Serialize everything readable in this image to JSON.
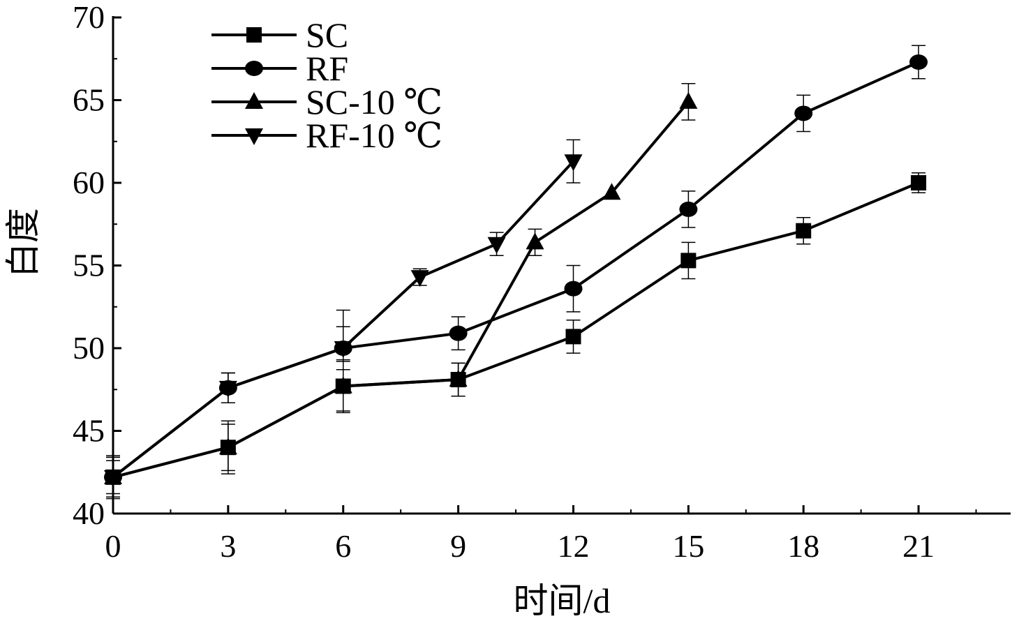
{
  "chart_data": {
    "type": "line",
    "title": "",
    "xlabel": "时间/d",
    "ylabel": "白度",
    "xlim": [
      0,
      23.4
    ],
    "ylim": [
      40,
      70
    ],
    "xticks": [
      0,
      3,
      6,
      9,
      12,
      15,
      18,
      21
    ],
    "yticks": [
      40,
      45,
      50,
      55,
      60,
      65,
      70
    ],
    "legend_position": "top-left",
    "grid": false,
    "series": [
      {
        "name": "SC",
        "marker": "square",
        "points": [
          {
            "x": 0,
            "y": 42.2,
            "err": 1.3
          },
          {
            "x": 3,
            "y": 44.0,
            "err": 1.6
          },
          {
            "x": 6,
            "y": 47.7,
            "err": 1.6
          },
          {
            "x": 9,
            "y": 48.1,
            "err": 1.0
          },
          {
            "x": 12,
            "y": 50.7,
            "err": 1.0
          },
          {
            "x": 15,
            "y": 55.3,
            "err": 1.1
          },
          {
            "x": 18,
            "y": 57.1,
            "err": 0.8
          },
          {
            "x": 21,
            "y": 60.0,
            "err": 0.6
          }
        ]
      },
      {
        "name": "RF",
        "marker": "circle",
        "points": [
          {
            "x": 0,
            "y": 42.2,
            "err": 1.0
          },
          {
            "x": 3,
            "y": 47.6,
            "err": 0.9
          },
          {
            "x": 6,
            "y": 50.0,
            "err": 1.3
          },
          {
            "x": 9,
            "y": 50.9,
            "err": 1.0
          },
          {
            "x": 12,
            "y": 53.6,
            "err": 1.4
          },
          {
            "x": 15,
            "y": 58.4,
            "err": 1.1
          },
          {
            "x": 18,
            "y": 64.2,
            "err": 1.1
          },
          {
            "x": 21,
            "y": 67.3,
            "err": 1.0
          }
        ]
      },
      {
        "name": "SC-10 ℃",
        "marker": "triangle-up",
        "points": [
          {
            "x": 0,
            "y": 42.2,
            "err": 1.2
          },
          {
            "x": 3,
            "y": 44.0,
            "err": 1.4
          },
          {
            "x": 6,
            "y": 47.7,
            "err": 1.5
          },
          {
            "x": 9,
            "y": 48.1,
            "err": 1.0
          },
          {
            "x": 11,
            "y": 56.4,
            "err": 0.8
          },
          {
            "x": 13,
            "y": 59.4,
            "err": 0
          },
          {
            "x": 15,
            "y": 64.9,
            "err": 1.1
          }
        ]
      },
      {
        "name": "RF-10 ℃",
        "marker": "triangle-down",
        "points": [
          {
            "x": 0,
            "y": 42.2,
            "err": 1.2
          },
          {
            "x": 3,
            "y": 47.6,
            "err": 0.9
          },
          {
            "x": 6,
            "y": 50.0,
            "err": 2.3
          },
          {
            "x": 8,
            "y": 54.3,
            "err": 0.5
          },
          {
            "x": 10,
            "y": 56.3,
            "err": 0.7
          },
          {
            "x": 12,
            "y": 61.3,
            "err": 1.3
          }
        ]
      }
    ]
  }
}
